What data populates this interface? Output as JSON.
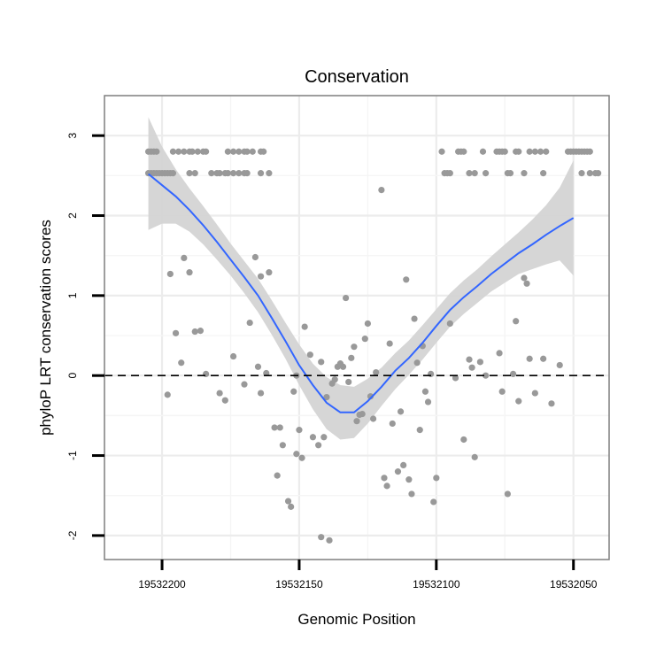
{
  "chart_data": {
    "type": "scatter",
    "title": "Conservation",
    "xlabel": "Genomic Position",
    "ylabel": "phyloP LRT conservation scores",
    "x_reversed": true,
    "xlim": [
      19532037,
      19532221
    ],
    "ylim": [
      -2.3,
      3.5
    ],
    "x_ticks": [
      19532200,
      19532150,
      19532100,
      19532050
    ],
    "x_tick_labels": [
      "19532200",
      "19532150",
      "19532100",
      "19532050"
    ],
    "y_ticks": [
      -2,
      -1,
      0,
      1,
      2,
      3
    ],
    "y_tick_labels": [
      "-2",
      "-1",
      "0",
      "1",
      "2",
      "3"
    ],
    "grid": true,
    "reference_line": {
      "y": 0,
      "style": "dashed"
    },
    "point_color": "#999999",
    "smooth_color": "#3366FF",
    "band_color": "#d4d4d4",
    "points": [
      {
        "x": 19532205,
        "y": 2.8
      },
      {
        "x": 19532204,
        "y": 2.8
      },
      {
        "x": 19532203,
        "y": 2.8
      },
      {
        "x": 19532202,
        "y": 2.8
      },
      {
        "x": 19532205,
        "y": 2.53
      },
      {
        "x": 19532204,
        "y": 2.53
      },
      {
        "x": 19532203,
        "y": 2.53
      },
      {
        "x": 19532202,
        "y": 2.53
      },
      {
        "x": 19532201,
        "y": 2.53
      },
      {
        "x": 19532200,
        "y": 2.53
      },
      {
        "x": 19532199,
        "y": 2.53
      },
      {
        "x": 19532198,
        "y": 2.53
      },
      {
        "x": 19532197,
        "y": 2.53
      },
      {
        "x": 19532196,
        "y": 2.53
      },
      {
        "x": 19532196,
        "y": 2.8
      },
      {
        "x": 19532194,
        "y": 2.8
      },
      {
        "x": 19532192,
        "y": 2.8
      },
      {
        "x": 19532190,
        "y": 2.8
      },
      {
        "x": 19532189,
        "y": 2.8
      },
      {
        "x": 19532187,
        "y": 2.8
      },
      {
        "x": 19532185,
        "y": 2.8
      },
      {
        "x": 19532184,
        "y": 2.8
      },
      {
        "x": 19532190,
        "y": 2.53
      },
      {
        "x": 19532188,
        "y": 2.53
      },
      {
        "x": 19532182,
        "y": 2.53
      },
      {
        "x": 19532180,
        "y": 2.53
      },
      {
        "x": 19532179,
        "y": 2.53
      },
      {
        "x": 19532177,
        "y": 2.53
      },
      {
        "x": 19532176,
        "y": 2.53
      },
      {
        "x": 19532174,
        "y": 2.53
      },
      {
        "x": 19532172,
        "y": 2.53
      },
      {
        "x": 19532170,
        "y": 2.53
      },
      {
        "x": 19532169,
        "y": 2.53
      },
      {
        "x": 19532176,
        "y": 2.8
      },
      {
        "x": 19532174,
        "y": 2.8
      },
      {
        "x": 19532172,
        "y": 2.8
      },
      {
        "x": 19532170,
        "y": 2.8
      },
      {
        "x": 19532169,
        "y": 2.8
      },
      {
        "x": 19532167,
        "y": 2.8
      },
      {
        "x": 19532164,
        "y": 2.8
      },
      {
        "x": 19532163,
        "y": 2.8
      },
      {
        "x": 19532164,
        "y": 2.53
      },
      {
        "x": 19532161,
        "y": 2.53
      },
      {
        "x": 19532197,
        "y": 1.27
      },
      {
        "x": 19532192,
        "y": 1.47
      },
      {
        "x": 19532190,
        "y": 1.29
      },
      {
        "x": 19532188,
        "y": 0.55
      },
      {
        "x": 19532186,
        "y": 0.56
      },
      {
        "x": 19532195,
        "y": 0.53
      },
      {
        "x": 19532193,
        "y": 0.16
      },
      {
        "x": 19532184,
        "y": 0.02
      },
      {
        "x": 19532198,
        "y": -0.24
      },
      {
        "x": 19532179,
        "y": -0.22
      },
      {
        "x": 19532177,
        "y": -0.31
      },
      {
        "x": 19532174,
        "y": 0.24
      },
      {
        "x": 19532170,
        "y": -0.11
      },
      {
        "x": 19532168,
        "y": 0.66
      },
      {
        "x": 19532166,
        "y": 1.48
      },
      {
        "x": 19532164,
        "y": 1.24
      },
      {
        "x": 19532161,
        "y": 1.29
      },
      {
        "x": 19532165,
        "y": 0.11
      },
      {
        "x": 19532164,
        "y": -0.22
      },
      {
        "x": 19532162,
        "y": 0.03
      },
      {
        "x": 19532159,
        "y": -0.65
      },
      {
        "x": 19532158,
        "y": -1.25
      },
      {
        "x": 19532157,
        "y": -0.65
      },
      {
        "x": 19532156,
        "y": -0.87
      },
      {
        "x": 19532154,
        "y": -1.57
      },
      {
        "x": 19532153,
        "y": -1.64
      },
      {
        "x": 19532152,
        "y": -0.2
      },
      {
        "x": 19532151,
        "y": 0.0
      },
      {
        "x": 19532151,
        "y": -0.98
      },
      {
        "x": 19532149,
        "y": -1.03
      },
      {
        "x": 19532150,
        "y": -0.68
      },
      {
        "x": 19532148,
        "y": 0.61
      },
      {
        "x": 19532146,
        "y": 0.26
      },
      {
        "x": 19532145,
        "y": -0.77
      },
      {
        "x": 19532143,
        "y": -0.87
      },
      {
        "x": 19532142,
        "y": 0.17
      },
      {
        "x": 19532141,
        "y": -0.77
      },
      {
        "x": 19532142,
        "y": -2.02
      },
      {
        "x": 19532139,
        "y": -2.06
      },
      {
        "x": 19532140,
        "y": -0.27
      },
      {
        "x": 19532138,
        "y": -0.1
      },
      {
        "x": 19532137,
        "y": -0.05
      },
      {
        "x": 19532136,
        "y": 0.11
      },
      {
        "x": 19532135,
        "y": 0.15
      },
      {
        "x": 19532134,
        "y": 0.11
      },
      {
        "x": 19532133,
        "y": 0.97
      },
      {
        "x": 19532132,
        "y": -0.08
      },
      {
        "x": 19532131,
        "y": 0.22
      },
      {
        "x": 19532130,
        "y": 0.36
      },
      {
        "x": 19532129,
        "y": -0.57
      },
      {
        "x": 19532128,
        "y": -0.49
      },
      {
        "x": 19532127,
        "y": -0.48
      },
      {
        "x": 19532126,
        "y": 0.46
      },
      {
        "x": 19532125,
        "y": 0.65
      },
      {
        "x": 19532124,
        "y": -0.26
      },
      {
        "x": 19532123,
        "y": -0.54
      },
      {
        "x": 19532122,
        "y": 0.04
      },
      {
        "x": 19532120,
        "y": 2.32
      },
      {
        "x": 19532119,
        "y": -1.28
      },
      {
        "x": 19532118,
        "y": -1.38
      },
      {
        "x": 19532117,
        "y": 0.4
      },
      {
        "x": 19532116,
        "y": -0.6
      },
      {
        "x": 19532114,
        "y": -1.2
      },
      {
        "x": 19532113,
        "y": -0.45
      },
      {
        "x": 19532112,
        "y": -1.12
      },
      {
        "x": 19532111,
        "y": 1.2
      },
      {
        "x": 19532110,
        "y": -1.3
      },
      {
        "x": 19532109,
        "y": -1.48
      },
      {
        "x": 19532108,
        "y": 0.71
      },
      {
        "x": 19532107,
        "y": 0.16
      },
      {
        "x": 19532106,
        "y": -0.68
      },
      {
        "x": 19532105,
        "y": 0.37
      },
      {
        "x": 19532104,
        "y": -0.2
      },
      {
        "x": 19532103,
        "y": -0.33
      },
      {
        "x": 19532102,
        "y": 0.02
      },
      {
        "x": 19532101,
        "y": -1.58
      },
      {
        "x": 19532100,
        "y": -1.28
      },
      {
        "x": 19532098,
        "y": 2.8
      },
      {
        "x": 19532097,
        "y": 2.53
      },
      {
        "x": 19532096,
        "y": 2.53
      },
      {
        "x": 19532095,
        "y": 2.53
      },
      {
        "x": 19532092,
        "y": 2.8
      },
      {
        "x": 19532091,
        "y": 2.8
      },
      {
        "x": 19532090,
        "y": 2.8
      },
      {
        "x": 19532088,
        "y": 2.53
      },
      {
        "x": 19532086,
        "y": 2.53
      },
      {
        "x": 19532083,
        "y": 2.8
      },
      {
        "x": 19532082,
        "y": 2.53
      },
      {
        "x": 19532078,
        "y": 2.8
      },
      {
        "x": 19532077,
        "y": 2.8
      },
      {
        "x": 19532076,
        "y": 2.8
      },
      {
        "x": 19532075,
        "y": 2.8
      },
      {
        "x": 19532074,
        "y": 2.53
      },
      {
        "x": 19532073,
        "y": 2.53
      },
      {
        "x": 19532071,
        "y": 2.8
      },
      {
        "x": 19532070,
        "y": 2.8
      },
      {
        "x": 19532068,
        "y": 2.53
      },
      {
        "x": 19532066,
        "y": 2.8
      },
      {
        "x": 19532064,
        "y": 2.8
      },
      {
        "x": 19532062,
        "y": 2.8
      },
      {
        "x": 19532060,
        "y": 2.8
      },
      {
        "x": 19532061,
        "y": 2.53
      },
      {
        "x": 19532052,
        "y": 2.8
      },
      {
        "x": 19532051,
        "y": 2.8
      },
      {
        "x": 19532050,
        "y": 2.8
      },
      {
        "x": 19532049,
        "y": 2.8
      },
      {
        "x": 19532048,
        "y": 2.8
      },
      {
        "x": 19532047,
        "y": 2.8
      },
      {
        "x": 19532046,
        "y": 2.8
      },
      {
        "x": 19532045,
        "y": 2.8
      },
      {
        "x": 19532044,
        "y": 2.8
      },
      {
        "x": 19532047,
        "y": 2.53
      },
      {
        "x": 19532044,
        "y": 2.53
      },
      {
        "x": 19532042,
        "y": 2.53
      },
      {
        "x": 19532041,
        "y": 2.53
      },
      {
        "x": 19532095,
        "y": 0.65
      },
      {
        "x": 19532093,
        "y": -0.03
      },
      {
        "x": 19532090,
        "y": -0.8
      },
      {
        "x": 19532088,
        "y": 0.2
      },
      {
        "x": 19532087,
        "y": 0.1
      },
      {
        "x": 19532086,
        "y": -1.02
      },
      {
        "x": 19532084,
        "y": 0.17
      },
      {
        "x": 19532082,
        "y": 0.0
      },
      {
        "x": 19532077,
        "y": 0.28
      },
      {
        "x": 19532076,
        "y": -0.2
      },
      {
        "x": 19532074,
        "y": -1.48
      },
      {
        "x": 19532072,
        "y": 0.02
      },
      {
        "x": 19532071,
        "y": 0.68
      },
      {
        "x": 19532070,
        "y": -0.32
      },
      {
        "x": 19532068,
        "y": 1.22
      },
      {
        "x": 19532067,
        "y": 1.15
      },
      {
        "x": 19532066,
        "y": 0.21
      },
      {
        "x": 19532064,
        "y": -0.22
      },
      {
        "x": 19532061,
        "y": 0.21
      },
      {
        "x": 19532058,
        "y": -0.35
      },
      {
        "x": 19532055,
        "y": 0.13
      }
    ],
    "smooth": [
      {
        "x": 19532205,
        "y": 2.52
      },
      {
        "x": 19532200,
        "y": 2.38
      },
      {
        "x": 19532195,
        "y": 2.24
      },
      {
        "x": 19532190,
        "y": 2.07
      },
      {
        "x": 19532185,
        "y": 1.88
      },
      {
        "x": 19532180,
        "y": 1.67
      },
      {
        "x": 19532175,
        "y": 1.45
      },
      {
        "x": 19532170,
        "y": 1.23
      },
      {
        "x": 19532165,
        "y": 1.0
      },
      {
        "x": 19532160,
        "y": 0.72
      },
      {
        "x": 19532155,
        "y": 0.43
      },
      {
        "x": 19532150,
        "y": 0.13
      },
      {
        "x": 19532145,
        "y": -0.12
      },
      {
        "x": 19532140,
        "y": -0.34
      },
      {
        "x": 19532135,
        "y": -0.46
      },
      {
        "x": 19532130,
        "y": -0.46
      },
      {
        "x": 19532125,
        "y": -0.32
      },
      {
        "x": 19532120,
        "y": -0.14
      },
      {
        "x": 19532115,
        "y": 0.06
      },
      {
        "x": 19532110,
        "y": 0.22
      },
      {
        "x": 19532105,
        "y": 0.41
      },
      {
        "x": 19532100,
        "y": 0.62
      },
      {
        "x": 19532095,
        "y": 0.82
      },
      {
        "x": 19532090,
        "y": 0.98
      },
      {
        "x": 19532085,
        "y": 1.12
      },
      {
        "x": 19532080,
        "y": 1.27
      },
      {
        "x": 19532075,
        "y": 1.4
      },
      {
        "x": 19532070,
        "y": 1.53
      },
      {
        "x": 19532065,
        "y": 1.64
      },
      {
        "x": 19532060,
        "y": 1.76
      },
      {
        "x": 19532055,
        "y": 1.87
      },
      {
        "x": 19532050,
        "y": 1.97
      }
    ],
    "band": [
      {
        "x": 19532205,
        "lo": 1.82,
        "hi": 3.23
      },
      {
        "x": 19532200,
        "lo": 1.9,
        "hi": 2.86
      },
      {
        "x": 19532195,
        "lo": 1.9,
        "hi": 2.58
      },
      {
        "x": 19532190,
        "lo": 1.8,
        "hi": 2.34
      },
      {
        "x": 19532185,
        "lo": 1.64,
        "hi": 2.12
      },
      {
        "x": 19532180,
        "lo": 1.45,
        "hi": 1.89
      },
      {
        "x": 19532175,
        "lo": 1.25,
        "hi": 1.65
      },
      {
        "x": 19532170,
        "lo": 1.03,
        "hi": 1.43
      },
      {
        "x": 19532165,
        "lo": 0.79,
        "hi": 1.21
      },
      {
        "x": 19532160,
        "lo": 0.51,
        "hi": 0.94
      },
      {
        "x": 19532155,
        "lo": 0.21,
        "hi": 0.66
      },
      {
        "x": 19532150,
        "lo": -0.12,
        "hi": 0.39
      },
      {
        "x": 19532145,
        "lo": -0.42,
        "hi": 0.15
      },
      {
        "x": 19532140,
        "lo": -0.67,
        "hi": -0.02
      },
      {
        "x": 19532135,
        "lo": -0.8,
        "hi": -0.12
      },
      {
        "x": 19532130,
        "lo": -0.78,
        "hi": -0.14
      },
      {
        "x": 19532125,
        "lo": -0.6,
        "hi": -0.04
      },
      {
        "x": 19532120,
        "lo": -0.38,
        "hi": 0.1
      },
      {
        "x": 19532115,
        "lo": -0.17,
        "hi": 0.28
      },
      {
        "x": 19532110,
        "lo": 0.01,
        "hi": 0.44
      },
      {
        "x": 19532105,
        "lo": 0.2,
        "hi": 0.63
      },
      {
        "x": 19532100,
        "lo": 0.41,
        "hi": 0.83
      },
      {
        "x": 19532095,
        "lo": 0.61,
        "hi": 1.03
      },
      {
        "x": 19532090,
        "lo": 0.77,
        "hi": 1.19
      },
      {
        "x": 19532085,
        "lo": 0.91,
        "hi": 1.33
      },
      {
        "x": 19532080,
        "lo": 1.05,
        "hi": 1.49
      },
      {
        "x": 19532075,
        "lo": 1.16,
        "hi": 1.64
      },
      {
        "x": 19532070,
        "lo": 1.27,
        "hi": 1.79
      },
      {
        "x": 19532065,
        "lo": 1.33,
        "hi": 1.95
      },
      {
        "x": 19532060,
        "lo": 1.39,
        "hi": 2.13
      },
      {
        "x": 19532055,
        "lo": 1.44,
        "hi": 2.35
      },
      {
        "x": 19532050,
        "lo": 1.25,
        "hi": 2.69
      }
    ]
  }
}
